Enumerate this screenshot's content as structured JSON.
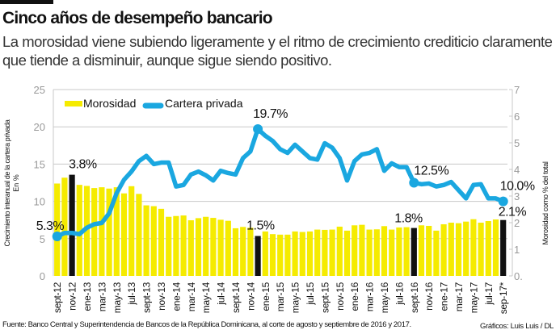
{
  "header": {
    "title": "Cinco años de desempeño bancario",
    "subtitle": "La morosidad viene subiendo ligeramente y el ritmo de crecimiento crediticio claramente que tiende a disminuir, aunque sigue siendo positivo."
  },
  "footer": {
    "source": "Fuente: Banco Central y Superintendencia de Bancos de la República Dominicana, al corte de agosto y septiembre de 2016 y 2017.",
    "credit": "Gráficos: Luis Luis / DL"
  },
  "chart_data": {
    "type": "bar+line",
    "ylabel_left": [
      "Crecimiento interanual de la cartera privada",
      "En %"
    ],
    "ylabel_right": "Morosidad como % del total",
    "ylim_left": [
      0,
      25
    ],
    "yticks_left": [
      "0",
      "5",
      "10",
      "15",
      "20",
      "25"
    ],
    "ylim_right": [
      0,
      7
    ],
    "yticks_right": [
      "0.",
      "1",
      "2",
      "3",
      "4",
      "5",
      "6",
      "7"
    ],
    "grid": true,
    "legend_placement": "top-left",
    "colors": {
      "bar": "#f5eb00",
      "bar_highlight": "#111111",
      "line": "#1aa7e0",
      "grid": "#c8c8c8"
    },
    "x_tick_labels": [
      "sept-12",
      "nov-12",
      "ene-13",
      "mar-13",
      "may-13",
      "jul-13",
      "sept-13",
      "nov-13",
      "ene-14",
      "mar-14",
      "may-14",
      "jul-14",
      "sept-14",
      "nov-14",
      "ene-15",
      "mar-15",
      "may-15",
      "jul-15",
      "sept-15",
      "nov-15",
      "ene-16",
      "mar-16",
      "may-16",
      "jul-16",
      "sept-16",
      "nov-16",
      "ene-17",
      "mar-17",
      "may-17",
      "jul-17",
      "sep-17*"
    ],
    "series": [
      {
        "name": "Morosidad",
        "type": "bar",
        "axis": "right",
        "highlight_indices": [
          2,
          27,
          48,
          60
        ],
        "values": [
          3.47,
          3.69,
          3.8,
          3.42,
          3.38,
          3.3,
          3.33,
          3.28,
          3.33,
          3.1,
          3.37,
          3.08,
          2.65,
          2.62,
          2.52,
          2.22,
          2.25,
          2.27,
          2.09,
          2.17,
          2.22,
          2.18,
          2.11,
          2.07,
          1.79,
          1.84,
          1.81,
          1.5,
          1.67,
          1.57,
          1.55,
          1.55,
          1.67,
          1.65,
          1.67,
          1.74,
          1.73,
          1.74,
          1.85,
          1.7,
          1.9,
          1.92,
          1.74,
          1.75,
          1.87,
          1.74,
          1.82,
          1.83,
          1.8,
          1.9,
          1.88,
          1.7,
          1.94,
          2.0,
          1.98,
          2.04,
          2.13,
          2.0,
          2.06,
          2.12,
          2.1
        ]
      },
      {
        "name": "Cartera privada",
        "type": "line",
        "axis": "left",
        "values": [
          5.3,
          5.76,
          5.76,
          5.6,
          6.47,
          6.94,
          7.1,
          8.4,
          11.1,
          12.9,
          14.0,
          15.4,
          16.1,
          15.0,
          15.2,
          15.2,
          12.0,
          12.2,
          13.6,
          14.0,
          13.5,
          12.8,
          14.1,
          13.8,
          13.6,
          15.8,
          16.7,
          19.7,
          18.8,
          18.1,
          17.0,
          16.5,
          17.6,
          16.7,
          15.8,
          15.6,
          17.8,
          17.2,
          15.8,
          12.8,
          15.4,
          16.3,
          16.5,
          17.0,
          14.1,
          15.1,
          14.6,
          14.6,
          12.5,
          12.3,
          12.4,
          12.0,
          12.2,
          12.6,
          11.5,
          10.4,
          12.2,
          12.3,
          10.4,
          10.4,
          10.0
        ]
      }
    ],
    "annotations": [
      {
        "text": "5.3%",
        "series": "Cartera privada",
        "index": 0
      },
      {
        "text": "3.8%",
        "series": "Morosidad",
        "index": 2
      },
      {
        "text": "19.7%",
        "series": "Cartera privada",
        "index": 27
      },
      {
        "text": "1.5%",
        "series": "Morosidad",
        "index": 27
      },
      {
        "text": "12.5%",
        "series": "Cartera privada",
        "index": 48
      },
      {
        "text": "1.8%",
        "series": "Morosidad",
        "index": 48
      },
      {
        "text": "10.0%",
        "series": "Cartera privada",
        "index": 60
      },
      {
        "text": "2.1%",
        "series": "Morosidad",
        "index": 60
      }
    ]
  }
}
